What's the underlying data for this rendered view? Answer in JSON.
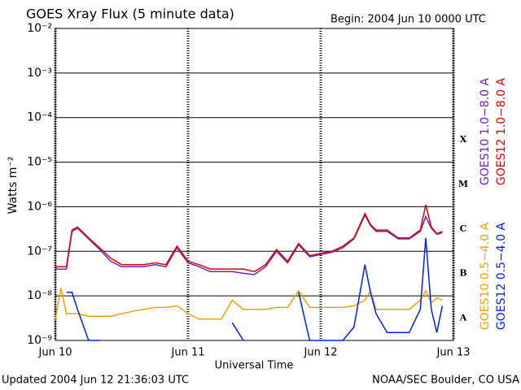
{
  "chart_data": {
    "type": "line",
    "title": "GOES Xray Flux (5 minute data)",
    "subtitle": "Begin:  2004 Jun 10 0000 UTC",
    "x_label": "Universal Time",
    "y_label": "Watts m⁻²",
    "footer_left": "Updated 2004 Jun 12 21:36:03 UTC",
    "footer_right": "NOAA/SEC Boulder, CO USA",
    "log_y": true,
    "grid": true,
    "legend": "right",
    "class_labels": [
      "X",
      "M",
      "C",
      "B",
      "A"
    ],
    "xlim": [
      0,
      72
    ],
    "xticks": [
      {
        "value": 0,
        "label": "Jun 10"
      },
      {
        "value": 24,
        "label": "Jun 11"
      },
      {
        "value": 48,
        "label": "Jun 12"
      },
      {
        "value": 72,
        "label": "Jun 13"
      }
    ],
    "ylim": [
      1e-09,
      0.01
    ],
    "yticks": [
      {
        "value": 1e-09,
        "label": "10⁻⁹"
      },
      {
        "value": 1e-08,
        "label": "10⁻⁸"
      },
      {
        "value": 1e-07,
        "label": "10⁻⁷"
      },
      {
        "value": 1e-06,
        "label": "10⁻⁶"
      },
      {
        "value": 1e-05,
        "label": "10⁻⁵"
      },
      {
        "value": 0.0001,
        "label": "10⁻⁴"
      },
      {
        "value": 0.001,
        "label": "10⁻³"
      },
      {
        "value": 0.01,
        "label": "10⁻²"
      }
    ],
    "x": [
      0,
      1,
      2,
      3,
      4,
      6,
      8,
      10,
      12,
      14,
      16,
      18,
      20,
      22,
      24,
      26,
      28,
      30,
      32,
      34,
      36,
      38,
      40,
      42,
      44,
      46,
      48,
      50,
      52,
      54,
      56,
      57,
      58,
      60,
      62,
      64,
      66,
      67,
      68,
      69,
      70
    ],
    "series": [
      {
        "name": "GOES10 1.0−8.0 A",
        "color": "#7020c0",
        "values": [
          4e-08,
          4e-08,
          4e-08,
          2.8e-07,
          3.3e-07,
          1.9e-07,
          1.1e-07,
          6e-08,
          4.5e-08,
          4.5e-08,
          4.5e-08,
          5e-08,
          4.5e-08,
          1.2e-07,
          5.5e-08,
          4.5e-08,
          3.5e-08,
          3.5e-08,
          3.5e-08,
          3.2e-08,
          3e-08,
          4.5e-08,
          1e-07,
          5.5e-08,
          1.4e-07,
          7.5e-08,
          8.5e-08,
          9.5e-08,
          1.2e-07,
          1.9e-07,
          6.5e-07,
          3.8e-07,
          2.8e-07,
          2.8e-07,
          1.9e-07,
          1.9e-07,
          2.8e-07,
          6e-07,
          3.3e-07,
          2.4e-07,
          2.6e-07
        ]
      },
      {
        "name": "GOES12 1.0−8.0 A",
        "color": "#e00000",
        "values": [
          4.5e-08,
          4.5e-08,
          4.5e-08,
          3e-07,
          3.5e-07,
          2e-07,
          1.2e-07,
          7e-08,
          5e-08,
          5e-08,
          5e-08,
          5.5e-08,
          5e-08,
          1.3e-07,
          6e-08,
          5e-08,
          4e-08,
          4e-08,
          4e-08,
          4e-08,
          3.5e-08,
          5e-08,
          1.1e-07,
          6e-08,
          1.5e-07,
          8e-08,
          9e-08,
          1e-07,
          1.3e-07,
          2e-07,
          7e-07,
          4e-07,
          3e-07,
          3e-07,
          2e-07,
          2e-07,
          3e-07,
          1.1e-06,
          3.5e-07,
          2.5e-07,
          2.8e-07
        ]
      },
      {
        "name": "GOES10 0.5−4.0 A",
        "color": "#f0a000",
        "values": [
          3e-09,
          1.5e-08,
          4e-09,
          4e-09,
          4e-09,
          3.5e-09,
          3.5e-09,
          3.5e-09,
          4e-09,
          4.5e-09,
          5e-09,
          5.5e-09,
          5.5e-09,
          6e-09,
          4e-09,
          3e-09,
          3e-09,
          3e-09,
          8e-09,
          5e-09,
          5e-09,
          5e-09,
          5.5e-09,
          5.5e-09,
          1.3e-08,
          5.5e-09,
          5.5e-09,
          5.5e-09,
          5.5e-09,
          6e-09,
          8e-09,
          1.3e-08,
          5e-09,
          5e-09,
          5e-09,
          5e-09,
          8e-09,
          1.3e-08,
          7e-09,
          9e-09,
          8e-09
        ]
      },
      {
        "name": "GOES12 0.5−4.0 A",
        "color": "#0020f0",
        "values": [
          null,
          null,
          1.2e-08,
          1.2e-08,
          5e-09,
          1e-09,
          1e-09,
          null,
          null,
          null,
          null,
          null,
          null,
          null,
          null,
          null,
          null,
          null,
          2.5e-09,
          1e-09,
          null,
          null,
          null,
          null,
          1.2e-08,
          1e-09,
          1e-09,
          1e-09,
          1e-09,
          2e-09,
          5e-08,
          1.2e-08,
          4e-09,
          1.5e-09,
          1.5e-09,
          1.5e-09,
          5e-09,
          2e-07,
          5e-09,
          1.5e-09,
          6e-09
        ]
      }
    ]
  }
}
